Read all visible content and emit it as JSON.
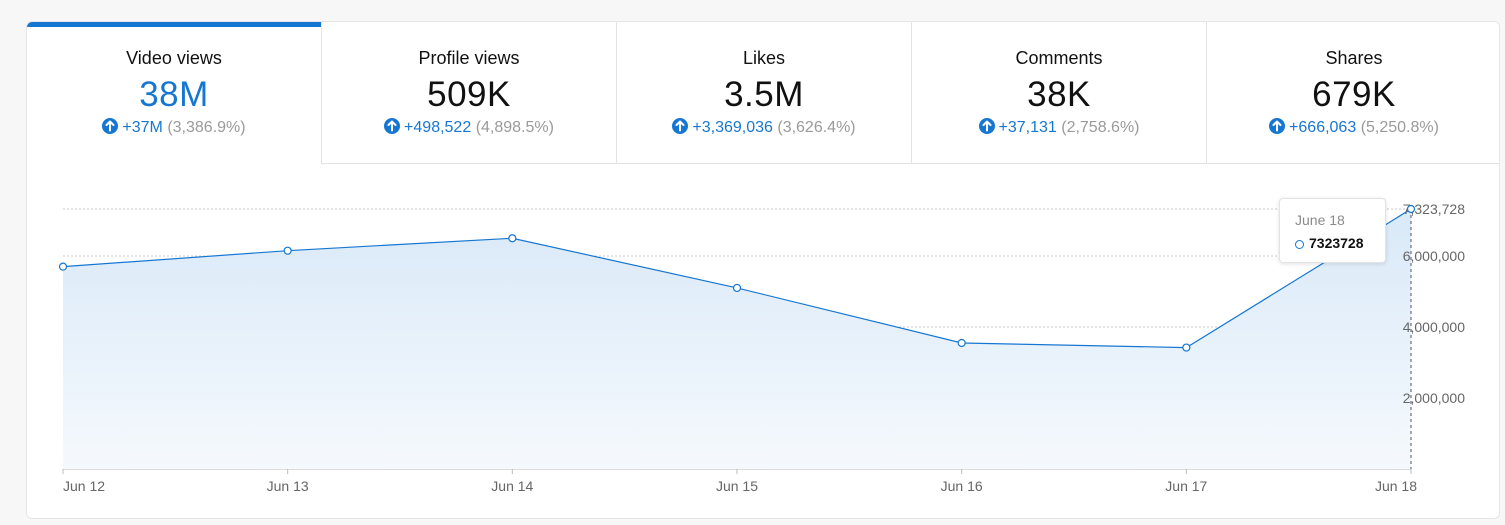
{
  "tabs": [
    {
      "label": "Video views",
      "value": "38M",
      "delta": "+37M",
      "pct": "(3,386.9%)",
      "active": true
    },
    {
      "label": "Profile views",
      "value": "509K",
      "delta": "+498,522",
      "pct": "(4,898.5%)",
      "active": false
    },
    {
      "label": "Likes",
      "value": "3.5M",
      "delta": "+3,369,036",
      "pct": "(3,626.4%)",
      "active": false
    },
    {
      "label": "Comments",
      "value": "38K",
      "delta": "+37,131",
      "pct": "(2,758.6%)",
      "active": false
    },
    {
      "label": "Shares",
      "value": "679K",
      "delta": "+666,063",
      "pct": "(5,250.8%)",
      "active": false
    }
  ],
  "tooltip": {
    "date": "June 18",
    "value": "7323728"
  },
  "colors": {
    "accent": "#1677d2",
    "muted": "#9a9a9a"
  },
  "chart_data": {
    "type": "area",
    "title": "Video views",
    "categories": [
      "Jun 12",
      "Jun 13",
      "Jun 14",
      "Jun 15",
      "Jun 16",
      "Jun 17",
      "Jun 18"
    ],
    "values": [
      5700000,
      6150000,
      6500000,
      5100000,
      3550000,
      3420000,
      7323728
    ],
    "y_ticks": [
      2000000,
      4000000,
      6000000,
      7323728
    ],
    "y_tick_labels": [
      "2,000,000",
      "4,000,000",
      "6,000,000",
      "7,323,728"
    ],
    "ylim": [
      0,
      7323728
    ],
    "grid": true,
    "y_axis_position": "right",
    "highlighted_index": 6
  }
}
